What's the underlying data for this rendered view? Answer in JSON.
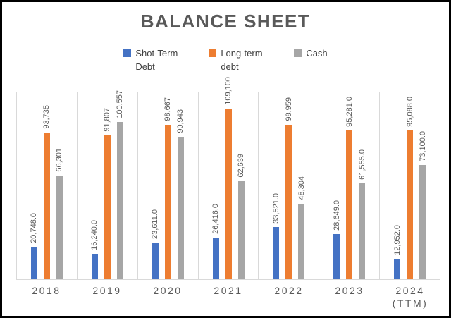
{
  "chart_data": {
    "type": "bar",
    "title": "BALANCE SHEET",
    "categories": [
      "2018",
      "2019",
      "2020",
      "2021",
      "2022",
      "2023",
      "2024\n(TTM)"
    ],
    "series": [
      {
        "name": "Shot-Term Debt",
        "color": "#4472C4",
        "values": [
          20748.0,
          16240.0,
          23611.0,
          26416.0,
          33521.0,
          28649.0,
          12952.0
        ],
        "labels": [
          "20,748.0",
          "16,240.0",
          "23,611.0",
          "26,416.0",
          "33,521.0",
          "28,649.0",
          "12,952.0"
        ]
      },
      {
        "name": "Long-term debt",
        "color": "#ED7D31",
        "values": [
          93735,
          91807,
          98667,
          109100,
          98959,
          95281.0,
          95088.0
        ],
        "labels": [
          "93,735",
          "91,807",
          "98,667",
          "109,100",
          "98,959",
          "95,281.0",
          "95,088.0"
        ]
      },
      {
        "name": "Cash",
        "color": "#A6A6A6",
        "values": [
          66301,
          100557,
          90943,
          62639,
          48304,
          61555.0,
          73100.0
        ],
        "labels": [
          "66,301",
          "100,557",
          "90,943",
          "62,639",
          "48,304",
          "61,555.0",
          "73,100.0"
        ]
      }
    ],
    "ylim": [
      0,
      120000
    ],
    "grid": "vertical-separators-on",
    "legend_position": "top",
    "data_label_rotation": "vertical",
    "colors": {
      "title_text": "#595959",
      "axis_text": "#595959",
      "data_label_text": "#595959",
      "legend_text": "#404040",
      "gridline": "#D9D9D9",
      "frame_border": "#000000",
      "background": "#FFFFFF"
    }
  }
}
